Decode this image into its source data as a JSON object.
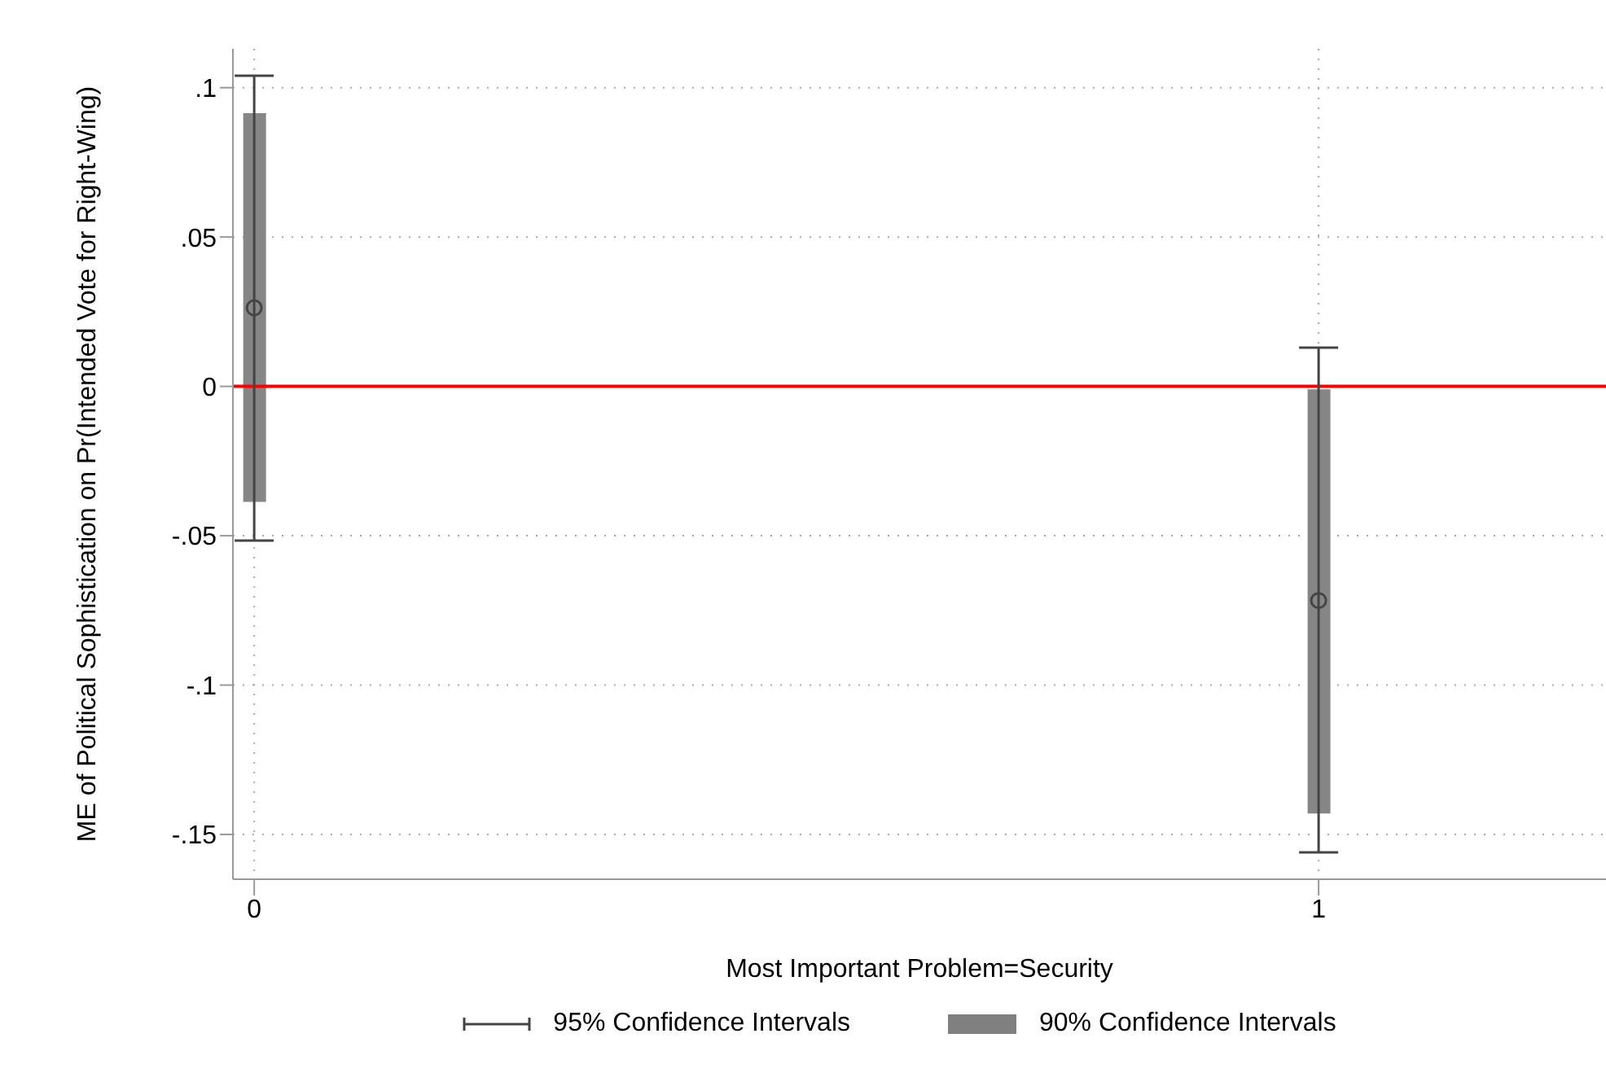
{
  "chart_data": {
    "type": "scatter",
    "xlabel": "Most Important Problem=Security",
    "ylabel": "ME of Political Sophistication on Pr(Intended Vote for Right-Wing)",
    "xlim": [
      -0.02,
      1.27
    ],
    "xticks": [
      0,
      1
    ],
    "ylim": [
      -0.165,
      0.113
    ],
    "yticks": [
      {
        "value": -0.15,
        "label": "-.15"
      },
      {
        "value": -0.1,
        "label": "-.1"
      },
      {
        "value": -0.05,
        "label": "-.05"
      },
      {
        "value": 0,
        "label": "0"
      },
      {
        "value": 0.05,
        "label": ".05"
      },
      {
        "value": 0.1,
        "label": ".1"
      }
    ],
    "grid": true,
    "legend": "bottom",
    "x": [
      0,
      1
    ],
    "ref_lines": [
      {
        "axis": "y",
        "value": 0,
        "color": "#ff0000"
      }
    ],
    "series": [
      {
        "type": "bar",
        "name": "90% Confidence Intervals",
        "color": "#808080",
        "base": [
          -0.0387,
          -0.143
        ],
        "values": [
          0.1302,
          0.142
        ]
      },
      {
        "name": "95% Confidence Intervals",
        "color": "#444444",
        "marker": "circle",
        "values": [
          0.0263,
          -0.0717
        ],
        "errors": [
          [
            -0.0516,
            0.104
          ],
          [
            -0.156,
            0.013
          ]
        ]
      }
    ]
  }
}
